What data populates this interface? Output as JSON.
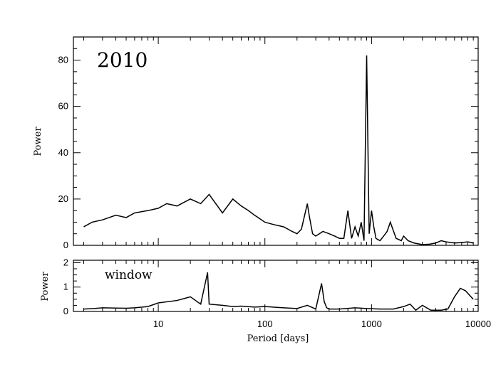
{
  "chart_data": [
    {
      "type": "line",
      "subplot": "top",
      "annotation": "2010",
      "title": "",
      "xlabel": "",
      "ylabel": "Power",
      "xscale": "log",
      "xlim": [
        1.6,
        10000
      ],
      "ylim": [
        0,
        90
      ],
      "xticks_major": [
        10,
        100,
        1000,
        10000
      ],
      "yticks": [
        0,
        20,
        40,
        60,
        80
      ],
      "ytick_labels": [
        "0",
        "20",
        "40",
        "60",
        "80"
      ],
      "grid": false,
      "series": [
        {
          "x": [
            2,
            2.4,
            3,
            4,
            5,
            6,
            8,
            10,
            12,
            15,
            20,
            25,
            30,
            40,
            50,
            60,
            70,
            80,
            100,
            120,
            150,
            180,
            200,
            220,
            250,
            260,
            280,
            300,
            350,
            400,
            450,
            500,
            550,
            600,
            650,
            700,
            750,
            800,
            850,
            900,
            950,
            1000,
            1050,
            1100,
            1200,
            1300,
            1400,
            1500,
            1700,
            1900,
            2000,
            2200,
            2500,
            3000,
            3500,
            4000,
            4500,
            5000,
            6000,
            7000,
            8000,
            9000
          ],
          "y": [
            8,
            10,
            11,
            13,
            12,
            14,
            15,
            16,
            18,
            17,
            20,
            18,
            22,
            14,
            20,
            17,
            15,
            13,
            10,
            9,
            8,
            6,
            5,
            7,
            18,
            13,
            5,
            4,
            6,
            5,
            4,
            3,
            3,
            15,
            3,
            8,
            4,
            10,
            2,
            82,
            5,
            15,
            8,
            3,
            2,
            4,
            6,
            10,
            3,
            2,
            4,
            2,
            1,
            0.3,
            0.5,
            1,
            2,
            1.5,
            1,
            1.2,
            1.5,
            1
          ],
          "description_of_values": "approximate envelope of a dense noisy periodogram; peak Power ~82 near Period ~890 days"
        }
      ]
    },
    {
      "type": "line",
      "subplot": "bottom",
      "annotation": "window",
      "title": "",
      "xlabel": "Period [days]",
      "ylabel": "Power",
      "xscale": "log",
      "xlim": [
        1.6,
        10000
      ],
      "ylim": [
        0,
        2.1
      ],
      "xticks_major": [
        10,
        100,
        1000,
        10000
      ],
      "xtick_labels": [
        "10",
        "100",
        "1000",
        "10000"
      ],
      "yticks": [
        0,
        1,
        2
      ],
      "ytick_labels": [
        "0",
        "1",
        "2"
      ],
      "grid": false,
      "series": [
        {
          "x": [
            2,
            2.5,
            3,
            4,
            5,
            6,
            8,
            10,
            15,
            20,
            25,
            29,
            30,
            40,
            50,
            60,
            80,
            100,
            150,
            200,
            250,
            300,
            340,
            360,
            380,
            400,
            500,
            700,
            900,
            1200,
            1600,
            2000,
            2300,
            2600,
            3000,
            3600,
            4500,
            5200,
            6000,
            6800,
            7600,
            9000
          ],
          "y": [
            0.1,
            0.12,
            0.15,
            0.14,
            0.13,
            0.15,
            0.2,
            0.35,
            0.45,
            0.6,
            0.3,
            1.6,
            0.3,
            0.25,
            0.2,
            0.22,
            0.18,
            0.2,
            0.15,
            0.12,
            0.25,
            0.1,
            1.15,
            0.4,
            0.15,
            0.1,
            0.1,
            0.15,
            0.12,
            0.1,
            0.1,
            0.2,
            0.3,
            0.05,
            0.25,
            0.05,
            0.05,
            0.1,
            0.6,
            0.95,
            0.85,
            0.5
          ]
        }
      ]
    }
  ]
}
